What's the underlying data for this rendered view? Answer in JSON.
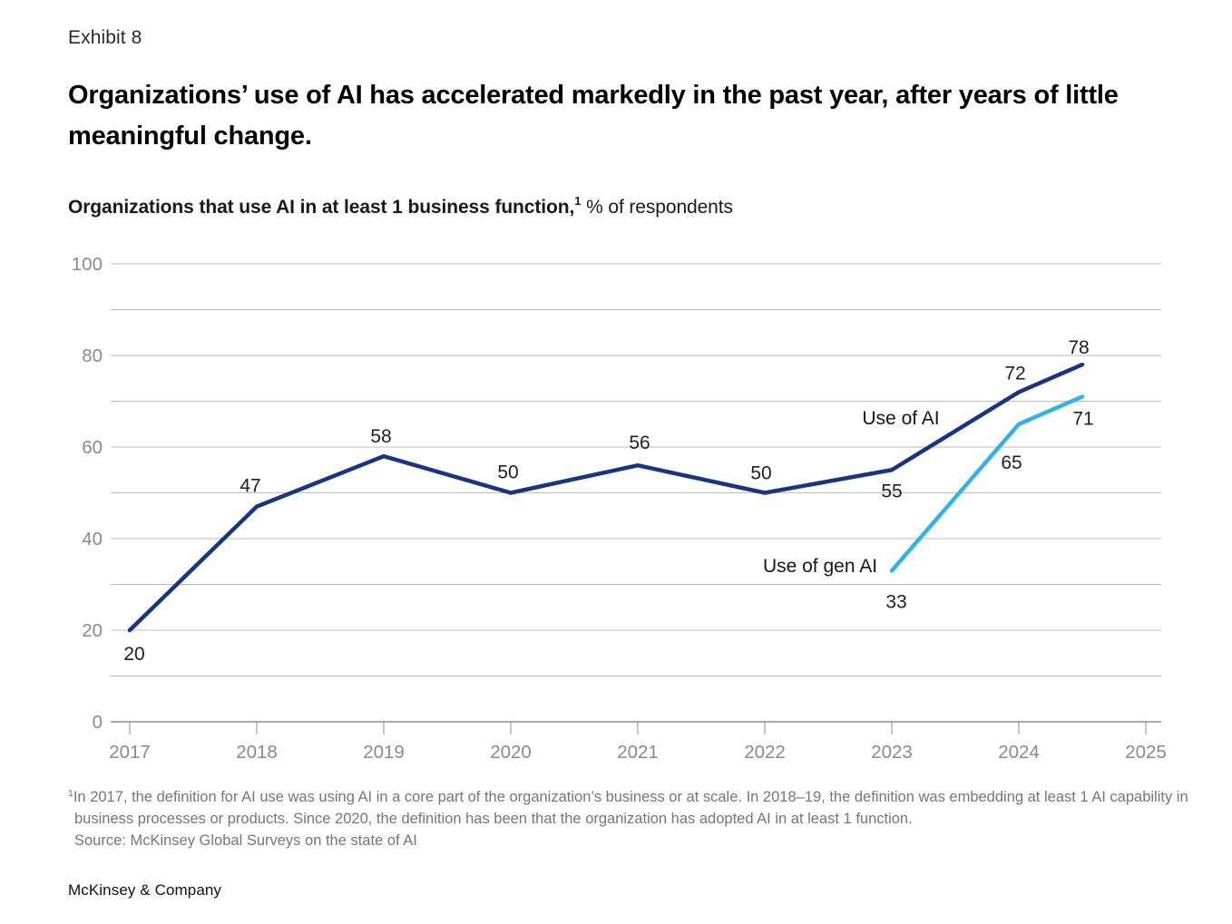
{
  "page": {
    "exhibit_label": "Exhibit 8",
    "title": "Organizations’ use of AI has accelerated markedly in the past year, after years of little meaningful change.",
    "subtitle": {
      "bold": "Organizations that use AI in at least 1 business function,",
      "superscript": "1",
      "regular": " % of respondents"
    },
    "footnote": {
      "marker": "1",
      "text": "In 2017, the definition for AI use was using AI in a core part of the organization’s business or at scale. In 2018–19, the definition was embedding at least 1 AI capability in business processes or products. Since 2020, the definition has been that the organization has adopted AI in at least 1 function.",
      "source": "Source: McKinsey Global Surveys on the state of AI"
    },
    "footer": "McKinsey & Company"
  },
  "chart_data": {
    "type": "line",
    "title": "Organizations that use AI in at least 1 business function, % of respondents",
    "xlabel": "",
    "ylabel": "% of respondents",
    "x_axis": {
      "ticks": [
        2017,
        2018,
        2019,
        2020,
        2021,
        2022,
        2023,
        2024,
        2025
      ]
    },
    "y_axis": {
      "label_ticks": [
        0,
        20,
        40,
        60,
        80,
        100
      ],
      "gridline_step": 10,
      "range": [
        0,
        100
      ],
      "grid": true
    },
    "legend_position": "inline-labels",
    "series": [
      {
        "name": "Use of AI",
        "color": "#1a3480",
        "points": [
          {
            "x": 2017,
            "y": 20,
            "label": "20",
            "label_pos": "below"
          },
          {
            "x": 2018,
            "y": 47,
            "label": "47",
            "label_pos": "above"
          },
          {
            "x": 2019,
            "y": 58,
            "label": "58",
            "label_pos": "above"
          },
          {
            "x": 2020,
            "y": 50,
            "label": "50",
            "label_pos": "above"
          },
          {
            "x": 2021,
            "y": 56,
            "label": "56",
            "label_pos": "above"
          },
          {
            "x": 2022,
            "y": 50,
            "label": "50",
            "label_pos": "above"
          },
          {
            "x": 2023,
            "y": 55,
            "label": "55",
            "label_pos": "below"
          },
          {
            "x": 2024,
            "y": 72,
            "label": "72",
            "label_pos": "above"
          },
          {
            "x": 2024.5,
            "y": 78,
            "label": "78",
            "label_pos": "above"
          }
        ]
      },
      {
        "name": "Use of gen AI",
        "color": "#33b2e6",
        "points": [
          {
            "x": 2023,
            "y": 33,
            "label": "33",
            "label_pos": "below"
          },
          {
            "x": 2024,
            "y": 65,
            "label": "65",
            "label_pos": "below-right"
          },
          {
            "x": 2024.5,
            "y": 71,
            "label": "71",
            "label_pos": "below-right"
          }
        ]
      }
    ]
  }
}
